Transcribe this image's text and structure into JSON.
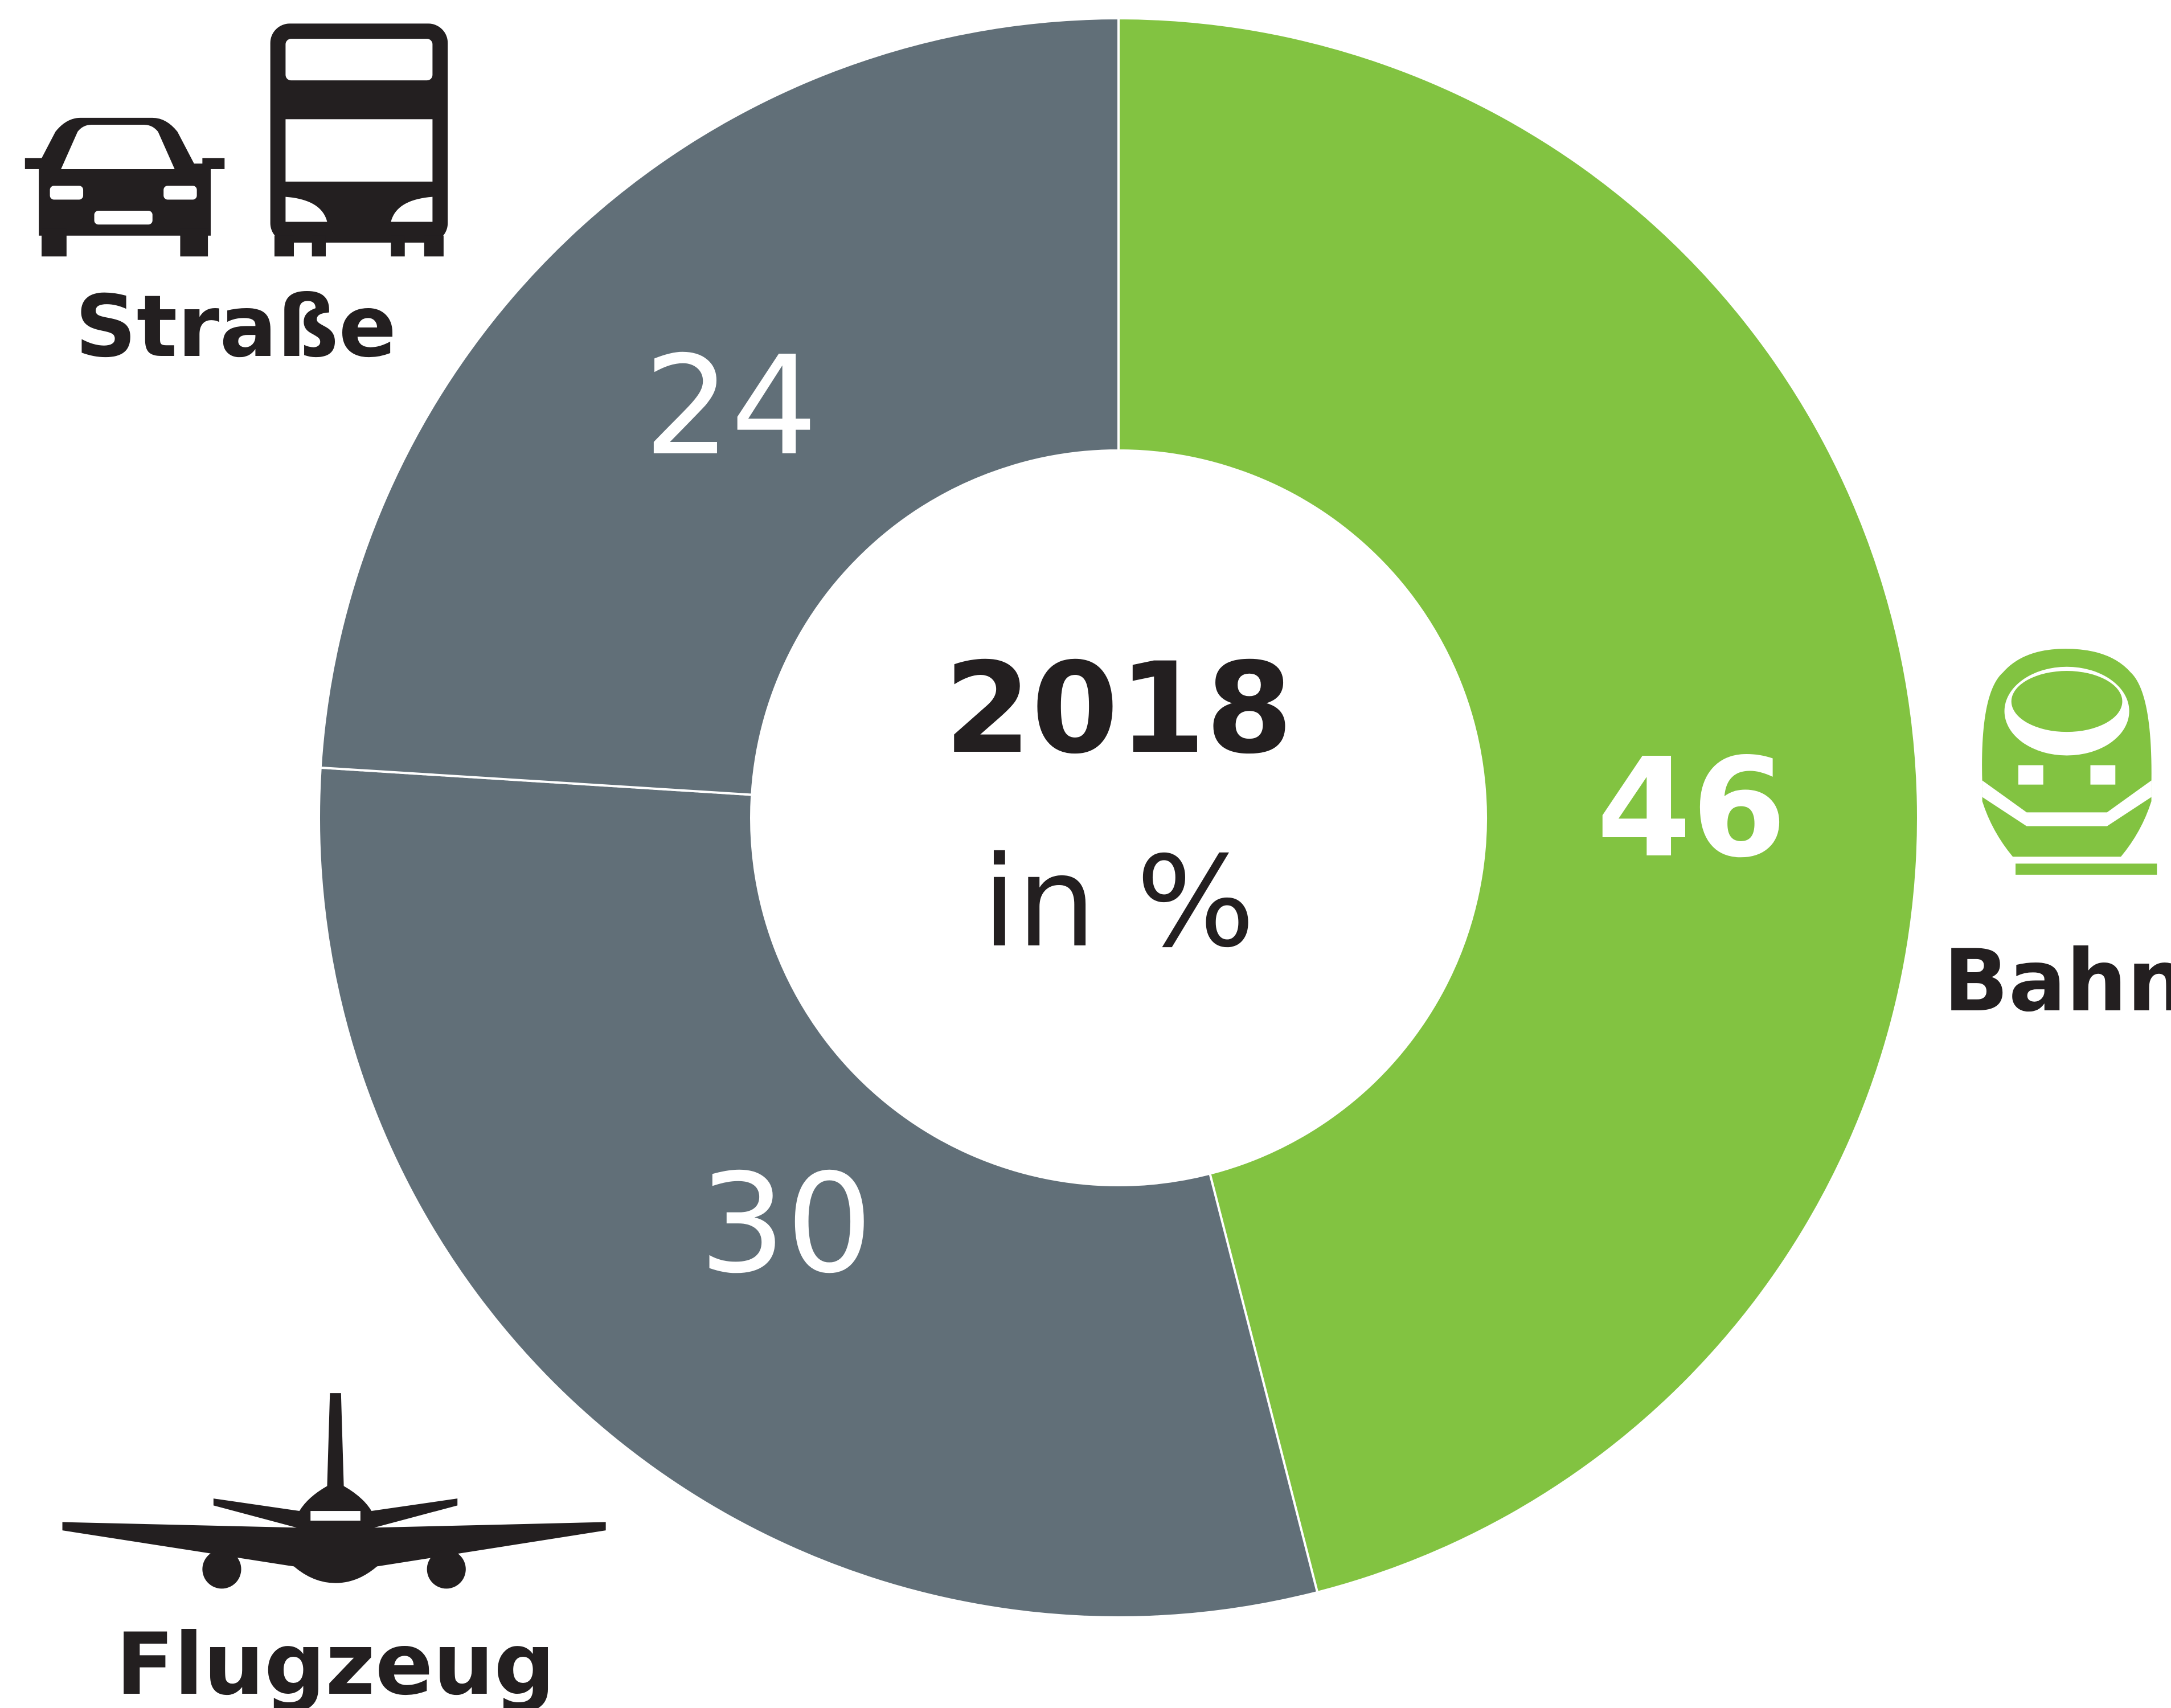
{
  "chart_data": {
    "type": "donut",
    "center_title": "2018",
    "center_subtitle": "in %",
    "categories": [
      "Bahn",
      "Flugzeug",
      "Straße"
    ],
    "values": [
      46,
      30,
      24
    ],
    "colors": [
      "#82c341",
      "#616f78",
      "#616f78"
    ]
  }
}
